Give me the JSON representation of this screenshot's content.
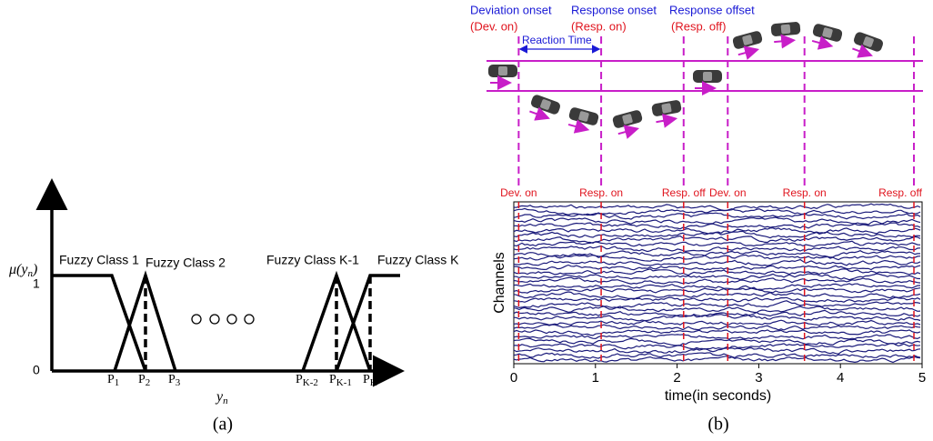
{
  "panel_a": {
    "mu_label": {
      "main": "μ(y",
      "sub": "n",
      "tail": ")"
    },
    "level_one": "1",
    "level_zero": "0",
    "classes": [
      "Fuzzy Class 1",
      "Fuzzy Class 2",
      "Fuzzy Class K-1",
      "Fuzzy Class K"
    ],
    "points": [
      {
        "main": "P",
        "sub": "1"
      },
      {
        "main": "P",
        "sub": "2"
      },
      {
        "main": "P",
        "sub": "3"
      },
      {
        "main": "P",
        "sub": "K-2"
      },
      {
        "main": "P",
        "sub": "K-1"
      },
      {
        "main": "P",
        "sub": "K"
      }
    ],
    "x_label": {
      "main": "y",
      "sub": "n"
    },
    "caption": "(a)"
  },
  "panel_b": {
    "annotations": [
      {
        "title": "Deviation onset",
        "short": "(Dev. on)"
      },
      {
        "title": "Response onset",
        "short": "(Resp. on)"
      },
      {
        "title": "Response offset",
        "short": "(Resp. off)"
      }
    ],
    "reaction_time": "Reaction Time",
    "caption": "(b)",
    "chart_data": {
      "type": "line",
      "x_label": "time(in seconds)",
      "y_label": "Channels",
      "xlim": [
        0,
        5
      ],
      "xticks": [
        0,
        1,
        2,
        3,
        4,
        5
      ],
      "events": [
        {
          "label": "Dev. on",
          "time": 0.06
        },
        {
          "label": "Resp. on",
          "time": 1.07
        },
        {
          "label": "Resp. off",
          "time": 2.08
        },
        {
          "label": "Dev. on",
          "time": 2.62
        },
        {
          "label": "Resp. on",
          "time": 3.56
        },
        {
          "label": "Resp. off",
          "time": 4.9
        }
      ]
    }
  }
}
